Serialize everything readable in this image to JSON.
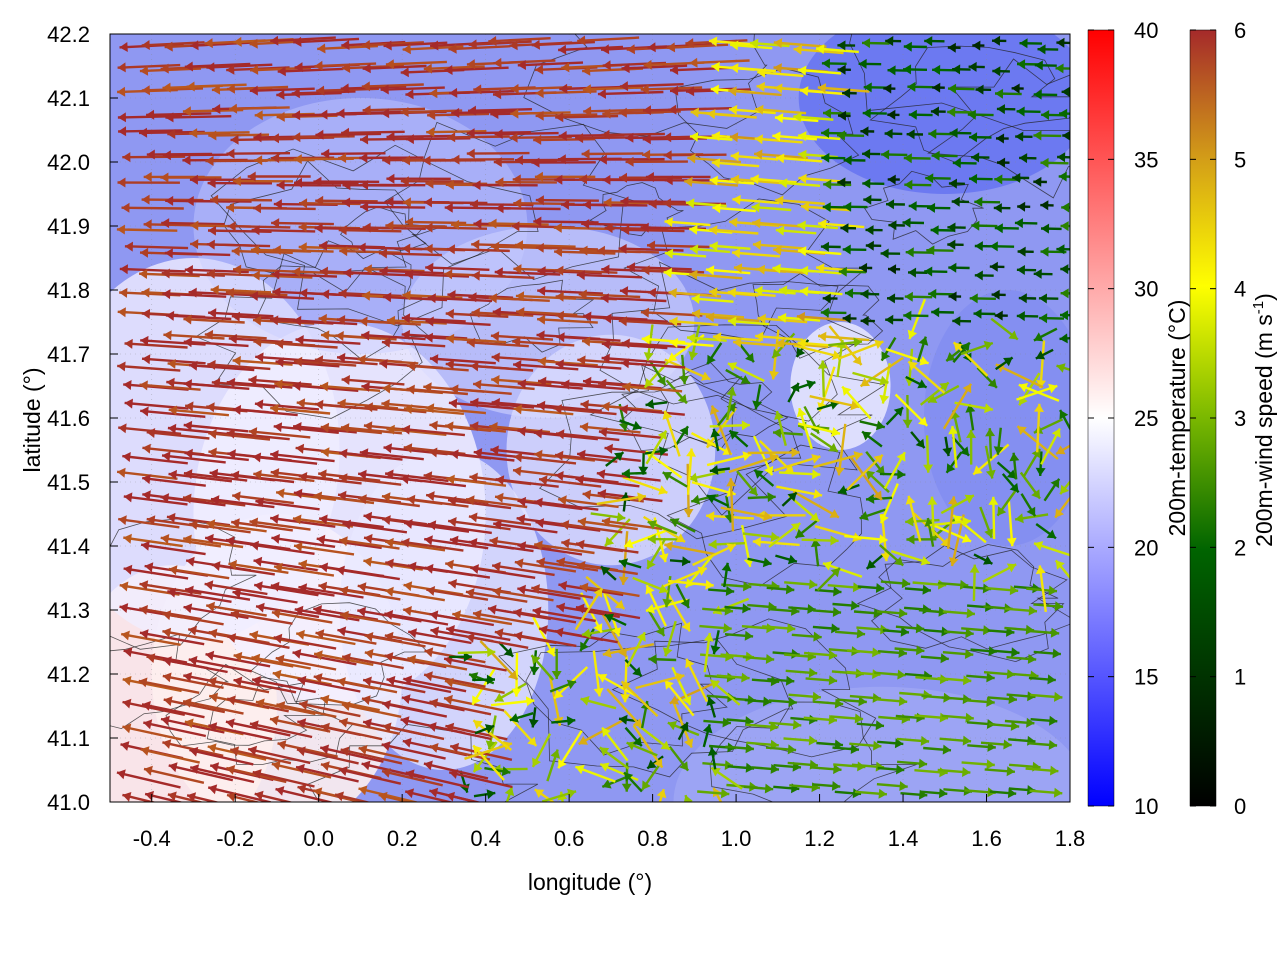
{
  "chart_data": {
    "type": "heatmap",
    "subtype": "vector-field-map",
    "xlabel": "longitude (°)",
    "ylabel": "latitude (°)",
    "xlim": [
      -0.5,
      1.8
    ],
    "ylim": [
      41.0,
      42.2
    ],
    "xticks": [
      "-0.4",
      "-0.2",
      "0.0",
      "0.2",
      "0.4",
      "0.6",
      "0.8",
      "1.0",
      "1.2",
      "1.4",
      "1.6",
      "1.8"
    ],
    "yticks": [
      "41.0",
      "41.1",
      "41.2",
      "41.3",
      "41.4",
      "41.5",
      "41.6",
      "41.7",
      "41.8",
      "41.9",
      "42.0",
      "42.1",
      "42.2"
    ],
    "grid": true,
    "temperature_colorbar": {
      "label": "200m-temperature (°C)",
      "range": [
        10,
        40
      ],
      "ticks": [
        "10",
        "15",
        "20",
        "25",
        "30",
        "35",
        "40"
      ],
      "colors": [
        "#0000ff",
        "#ffffff",
        "#ff0000"
      ]
    },
    "wind_colorbar": {
      "label_main": "200m-wind speed (m s",
      "label_sup": "-1",
      "label_end": ")",
      "range": [
        0,
        6
      ],
      "ticks": [
        "0",
        "1",
        "2",
        "3",
        "4",
        "5",
        "6"
      ],
      "colors": [
        "#000000",
        "#006400",
        "#7ab800",
        "#ffff00",
        "#d4a017",
        "#c0661a",
        "#a52a2a"
      ]
    },
    "wind_regimes": [
      {
        "region": "west / north-west",
        "speed_ms": 6,
        "direction": "from east-southeast"
      },
      {
        "region": "central north",
        "speed_ms": 4,
        "direction": "from east"
      },
      {
        "region": "south-east",
        "speed_ms": 2.5,
        "direction": "from west"
      },
      {
        "region": "north-east",
        "speed_ms": 1.5,
        "direction": "from east"
      }
    ],
    "temperature_pattern": {
      "south-west": 27,
      "north-east": 15,
      "south-east": 17
    }
  }
}
